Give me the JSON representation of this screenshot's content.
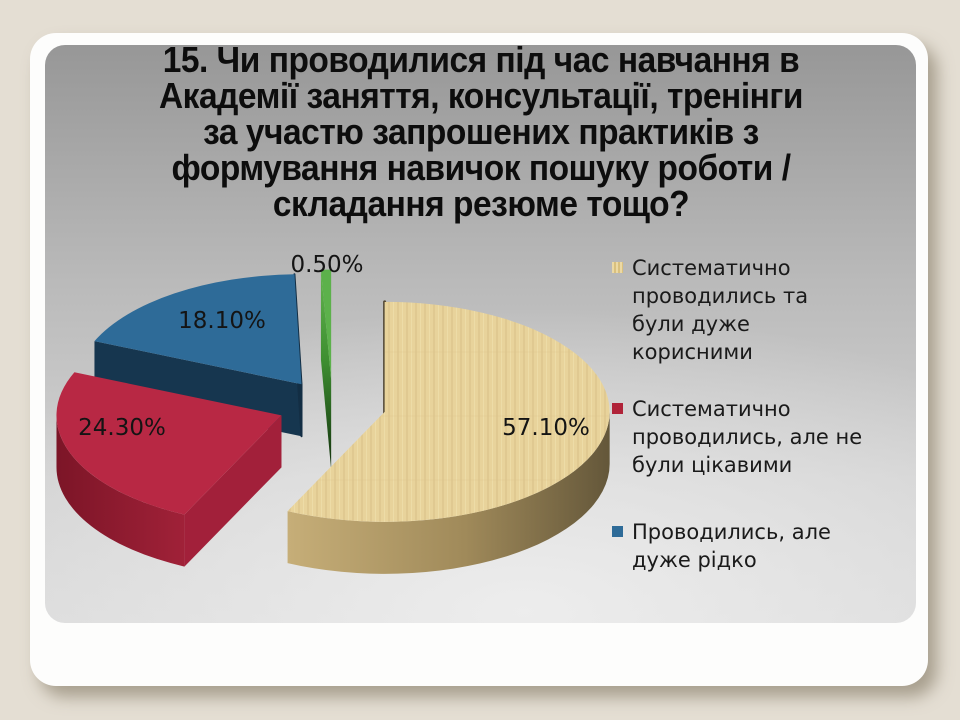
{
  "slide": {
    "title_lines": [
      "15. Чи проводилися під час навчання в",
      "Академії заняття, консультації, тренінги",
      "за участю запрошених практиків з",
      "формування навичок пошуку роботи /",
      "складання резюме тощо?"
    ],
    "background_color": "#e4ded3",
    "panel_top_color": "#979797",
    "panel_bottom_color": "#d9d9d9"
  },
  "chart_data": {
    "type": "pie",
    "style": "3d-exploded",
    "unit": "%",
    "total": 100,
    "start_angle_deg": 0,
    "direction": "clockwise",
    "slices": [
      {
        "label": "Систематично проводились та були дуже корисними",
        "value": 57.1,
        "pct_label": "57.10%",
        "color": "#e8d39b",
        "side_color": "#a08a5a",
        "cut_start": "#5a4d36",
        "cut_start_stroke": "#4a3f2c",
        "rim": "url(#rimTan)",
        "texture": true
      },
      {
        "label": "Систематично проводились, але не були цікавими",
        "value": 24.3,
        "pct_label": "24.30%",
        "color": "#b82844",
        "side_color": "#8e1b30",
        "cut_start": "#a2203a",
        "rim": "url(#rimRed)"
      },
      {
        "label": "Проводились, але дуже рідко",
        "value": 18.1,
        "pct_label": "18.10%",
        "color": "#2e6b98",
        "side_color": "#16364f",
        "cut_start": "#16364f",
        "cut_end": "#132e44",
        "cut_end_stroke": "#132e44"
      },
      {
        "label": "",
        "value": 0.5,
        "pct_label": "0.50%",
        "color": "#5cb14b",
        "side_color": "#2f6e24",
        "cut_start": "url(#gradGreen)",
        "needle": true
      }
    ],
    "legend": {
      "position": "right",
      "items": [
        {
          "marker_color": "#e3cf96",
          "lines": [
            "Систематично",
            "проводились та",
            "були дуже",
            "корисними"
          ]
        },
        {
          "marker_color": "#b02339",
          "lines": [
            "Систематично",
            "проводились, але не",
            "були цікавими"
          ]
        },
        {
          "marker_color": "#2e6b98",
          "lines": [
            "Проводились, але",
            "дуже рідко"
          ]
        }
      ]
    }
  }
}
